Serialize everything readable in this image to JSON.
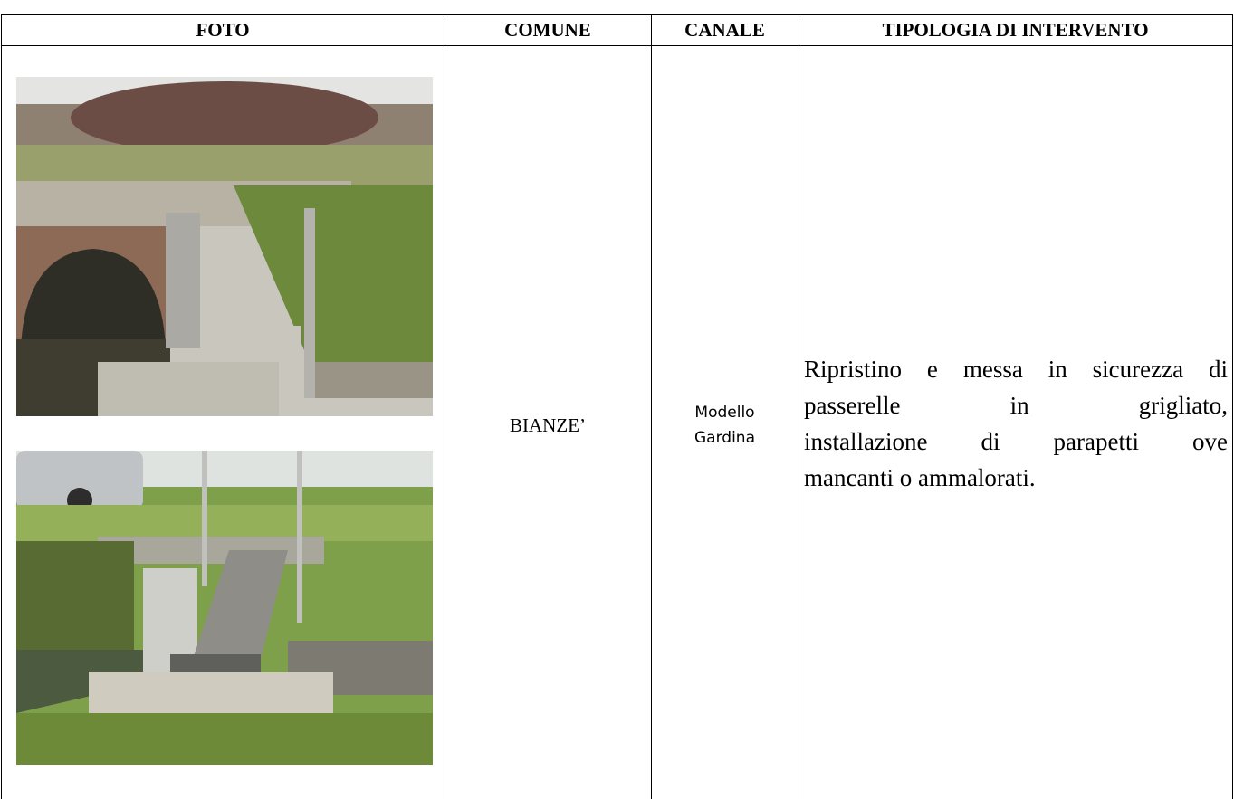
{
  "table": {
    "header": [
      "FOTO",
      "COMUNE",
      "CANALE",
      "TIPOLOGIA DI INTERVENTO"
    ],
    "rows": [
      {
        "comune": "BIANZE’",
        "canale": [
          "Modello",
          "Gardina"
        ],
        "tipologia": [
          "Ripristino e messa in sicurezza di",
          "passerelle in grigliato,",
          "installazione di parapetti ove",
          "mancanti o ammalorati."
        ]
      }
    ]
  }
}
